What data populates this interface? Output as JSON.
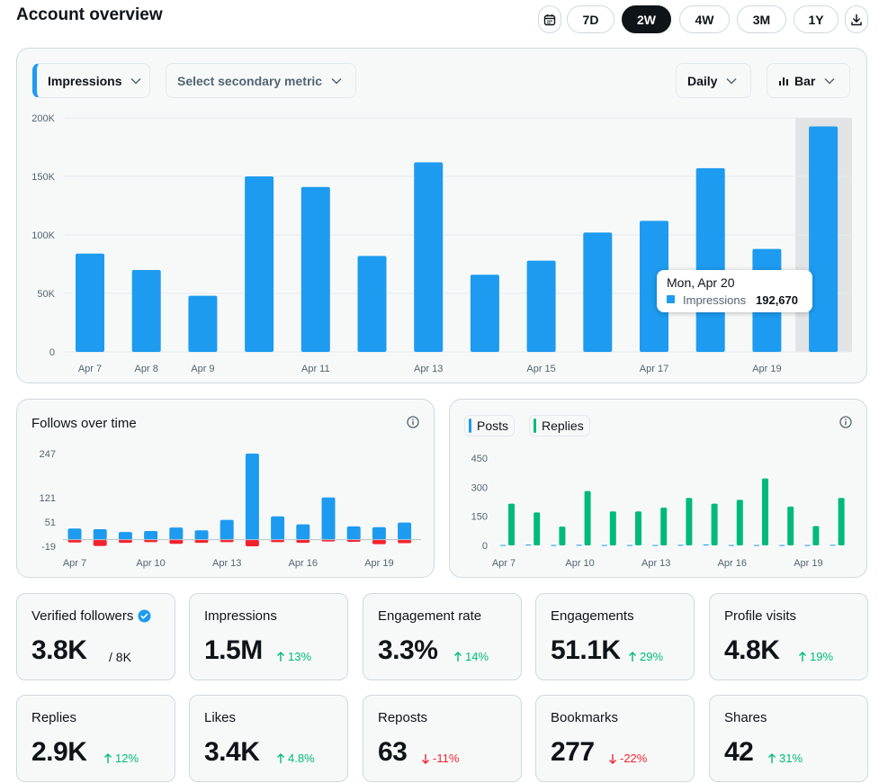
{
  "header": {
    "title": "Account overview",
    "ranges": [
      "7D",
      "2W",
      "4W",
      "3M",
      "1Y"
    ],
    "active_range": "2W",
    "calendar_icon": "calendar-icon",
    "download_icon": "download-icon"
  },
  "main_chart_controls": {
    "primary_metric": "Impressions",
    "secondary_metric_placeholder": "Select secondary metric",
    "interval": "Daily",
    "chart_type": "Bar"
  },
  "colors": {
    "blue": "#1d9bf0",
    "green": "#00ba7c",
    "red": "#f4212e",
    "highlight": "#e1e3e5"
  },
  "tooltip": {
    "date": "Mon, Apr 20",
    "series": "Impressions",
    "value": "192,670"
  },
  "chart_data": [
    {
      "type": "bar",
      "categories": [
        "Apr 7",
        "Apr 8",
        "Apr 9",
        "Apr 10",
        "Apr 11",
        "Apr 12",
        "Apr 13",
        "Apr 14",
        "Apr 15",
        "Apr 16",
        "Apr 17",
        "Apr 18",
        "Apr 19",
        "Apr 20"
      ],
      "tick_labels": [
        "Apr 7",
        "Apr 8",
        "Apr 9",
        "",
        "Apr 11",
        "",
        "Apr 13",
        "",
        "Apr 15",
        "",
        "Apr 17",
        "",
        "Apr 19",
        ""
      ],
      "y_tick_labels": [
        "0",
        "50K",
        "100K",
        "150K",
        "200K"
      ],
      "ylim": [
        0,
        200000
      ],
      "series": [
        {
          "name": "Impressions",
          "values": [
            84000,
            70000,
            48000,
            150000,
            141000,
            82000,
            162000,
            66000,
            78000,
            102000,
            112000,
            157000,
            88000,
            192670
          ]
        }
      ],
      "highlighted_index": 13,
      "grid": true
    },
    {
      "type": "bar",
      "title": "Follows over time",
      "categories": [
        "Apr 7",
        "Apr 8",
        "Apr 9",
        "Apr 10",
        "Apr 11",
        "Apr 12",
        "Apr 13",
        "Apr 14",
        "Apr 15",
        "Apr 16",
        "Apr 17",
        "Apr 18",
        "Apr 19",
        "Apr 20"
      ],
      "tick_labels": [
        "Apr 7",
        "",
        "",
        "Apr 10",
        "",
        "",
        "Apr 13",
        "",
        "",
        "Apr 16",
        "",
        "",
        "Apr 19",
        ""
      ],
      "y_tick_labels": [
        "247",
        "121",
        "51",
        "-19"
      ],
      "ylim": [
        -19,
        247
      ],
      "series": [
        {
          "values": [
            32,
            30,
            22,
            25,
            35,
            27,
            57,
            247,
            67,
            44,
            121,
            38,
            36,
            49
          ]
        },
        {
          "values": [
            -8,
            -18,
            -9,
            -7,
            -12,
            -9,
            -7,
            -19,
            -7,
            -9,
            -5,
            -6,
            -13,
            -10
          ]
        }
      ]
    },
    {
      "type": "bar",
      "categories": [
        "Apr 7",
        "Apr 8",
        "Apr 9",
        "Apr 10",
        "Apr 11",
        "Apr 12",
        "Apr 13",
        "Apr 14",
        "Apr 15",
        "Apr 16",
        "Apr 17",
        "Apr 18",
        "Apr 19",
        "Apr 20"
      ],
      "tick_labels": [
        "Apr 7",
        "",
        "",
        "Apr 10",
        "",
        "",
        "Apr 13",
        "",
        "",
        "Apr 16",
        "",
        "",
        "Apr 19",
        ""
      ],
      "y_tick_labels": [
        "0",
        "150",
        "300",
        "450"
      ],
      "ylim": [
        0,
        450
      ],
      "series": [
        {
          "name": "Posts",
          "values": [
            2,
            4,
            2,
            3,
            2,
            2,
            2,
            3,
            5,
            2,
            2,
            2,
            2,
            3
          ]
        },
        {
          "name": "Replies",
          "values": [
            215,
            170,
            97,
            280,
            175,
            175,
            195,
            245,
            215,
            235,
            345,
            200,
            100,
            245
          ]
        }
      ]
    }
  ],
  "cards": [
    {
      "label": "Verified followers",
      "value": "3.8K",
      "suffix": "/ 8K",
      "change": "",
      "dir": "",
      "verified_icon": "verified-badge-icon"
    },
    {
      "label": "Impressions",
      "value": "1.5M",
      "change": "13%",
      "dir": "up"
    },
    {
      "label": "Engagement rate",
      "value": "3.3%",
      "change": "14%",
      "dir": "up"
    },
    {
      "label": "Engagements",
      "value": "51.1K",
      "change": "29%",
      "dir": "up"
    },
    {
      "label": "Profile visits",
      "value": "4.8K",
      "change": "19%",
      "dir": "up"
    },
    {
      "label": "Replies",
      "value": "2.9K",
      "change": "12%",
      "dir": "up"
    },
    {
      "label": "Likes",
      "value": "3.4K",
      "change": "4.8%",
      "dir": "up"
    },
    {
      "label": "Reposts",
      "value": "63",
      "change": "-11%",
      "dir": "down"
    },
    {
      "label": "Bookmarks",
      "value": "277",
      "change": "-22%",
      "dir": "down"
    },
    {
      "label": "Shares",
      "value": "42",
      "change": "31%",
      "dir": "up"
    }
  ]
}
